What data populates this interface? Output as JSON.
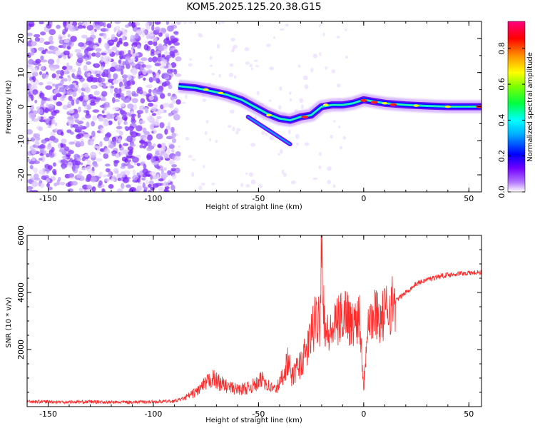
{
  "title": "KOM5.2025.125.20.38.G15",
  "colors": {
    "snr_line": "#ff2a2a",
    "axis": "#000000",
    "background": "#ffffff"
  },
  "chart_data": [
    {
      "type": "heatmap",
      "xlabel": "Height of straight line (km)",
      "ylabel": "Frequency (Hz)",
      "xlim": [
        -160,
        56
      ],
      "ylim": [
        -25,
        25
      ],
      "x_ticks": [
        -150,
        -100,
        -50,
        0,
        50
      ],
      "y_ticks": [
        20,
        10,
        0,
        -10,
        -20
      ],
      "colorbar": {
        "label": "Normalized spectral amplitude",
        "range": [
          0,
          0.95
        ],
        "ticks": [
          0.0,
          0.2,
          0.4,
          0.6,
          0.8
        ],
        "colormap": [
          "#ffffff",
          "#8000ff",
          "#0000ff",
          "#00ffff",
          "#00ff00",
          "#ffff00",
          "#ff8000",
          "#ff0000",
          "#ff0080"
        ]
      },
      "ridge": {
        "x": [
          -88,
          -80,
          -72,
          -65,
          -58,
          -52,
          -46,
          -40,
          -35,
          -30,
          -25,
          -20,
          -15,
          -10,
          -5,
          0,
          5,
          10,
          20,
          30,
          40,
          50,
          56
        ],
        "y": [
          6,
          5.5,
          4.5,
          3.5,
          2,
          0,
          -2,
          -3.5,
          -4,
          -3,
          -2.5,
          0,
          0.5,
          0.5,
          1,
          2,
          1.5,
          1,
          0.5,
          0.2,
          0,
          0,
          0
        ]
      }
    },
    {
      "type": "line",
      "xlabel": "Height of straight line (km)",
      "ylabel": "SNR (10 * v/v)",
      "xlim": [
        -160,
        56
      ],
      "ylim": [
        0,
        6000
      ],
      "x_ticks": [
        -150,
        -100,
        -50,
        0,
        50
      ],
      "y_ticks": [
        2000,
        4000,
        6000
      ],
      "series": [
        {
          "x": [
            -160,
            -150,
            -140,
            -130,
            -120,
            -110,
            -100,
            -90,
            -85,
            -80,
            -75,
            -72,
            -70,
            -65,
            -60,
            -55,
            -52,
            -50,
            -48,
            -45,
            -42,
            -40,
            -38,
            -36,
            -34,
            -32,
            -30,
            -28,
            -26,
            -24,
            -22,
            -21,
            -20,
            -19,
            -18,
            -16,
            -14,
            -12,
            -10,
            -8,
            -6,
            -4,
            -2,
            0,
            2,
            4,
            6,
            8,
            10,
            12,
            15,
            20,
            25,
            30,
            35,
            40,
            45,
            50,
            56
          ],
          "y": [
            180,
            170,
            160,
            170,
            150,
            160,
            170,
            190,
            300,
            500,
            800,
            1000,
            900,
            700,
            600,
            650,
            750,
            800,
            1000,
            700,
            600,
            800,
            1200,
            1600,
            1000,
            1300,
            1500,
            1800,
            2200,
            2800,
            3000,
            3200,
            6000,
            3500,
            2600,
            2500,
            2800,
            3000,
            3200,
            3400,
            2800,
            3000,
            3300,
            600,
            3300,
            3000,
            3400,
            3000,
            3300,
            3500,
            3700,
            4000,
            4300,
            4450,
            4550,
            4620,
            4660,
            4680,
            4700
          ]
        }
      ]
    }
  ]
}
